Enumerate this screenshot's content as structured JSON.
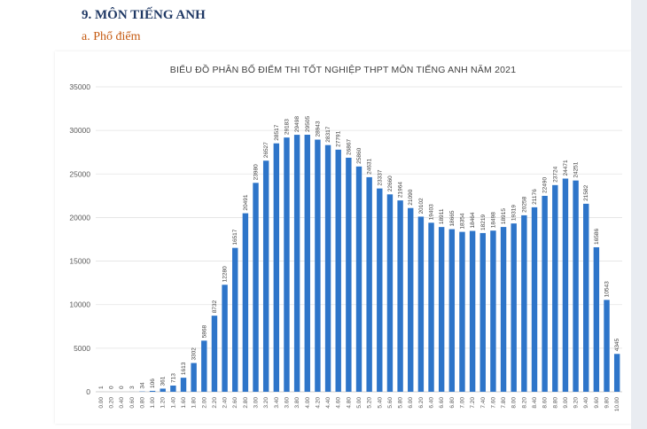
{
  "heading": "9.  MÔN TIẾNG ANH",
  "subheading": "a.  Phổ điểm",
  "chart_data": {
    "type": "bar",
    "title": "BIỂU ĐỒ PHÂN BỐ ĐIỂM THI TỐT NGHIỆP THPT MÔN TIẾNG ANH NĂM 2021",
    "xlabel": "",
    "ylabel": "",
    "ylim": [
      0,
      35000
    ],
    "yticks": [
      0,
      5000,
      10000,
      15000,
      20000,
      25000,
      30000,
      35000
    ],
    "grid": true,
    "legend": "none",
    "bar_color": "#2e75c9",
    "categories": [
      "0.00",
      "0.20",
      "0.40",
      "0.60",
      "0.80",
      "1.00",
      "1.20",
      "1.40",
      "1.60",
      "1.80",
      "2.00",
      "2.20",
      "2.40",
      "2.60",
      "2.80",
      "3.00",
      "3.20",
      "3.40",
      "3.60",
      "3.80",
      "4.00",
      "4.20",
      "4.40",
      "4.60",
      "4.80",
      "5.00",
      "5.20",
      "5.40",
      "5.60",
      "5.80",
      "6.00",
      "6.20",
      "6.40",
      "6.60",
      "6.80",
      "7.00",
      "7.20",
      "7.40",
      "7.60",
      "7.80",
      "8.00",
      "8.20",
      "8.40",
      "8.60",
      "8.80",
      "9.00",
      "9.20",
      "9.40",
      "9.60",
      "9.80",
      "10.00"
    ],
    "values": [
      1,
      0,
      0,
      3,
      34,
      106,
      361,
      713,
      1613,
      3302,
      5868,
      8732,
      12280,
      16517,
      20491,
      23980,
      26527,
      28517,
      29183,
      29498,
      29505,
      28943,
      28317,
      27791,
      26867,
      25860,
      24631,
      23337,
      22660,
      21964,
      21090,
      20102,
      19403,
      18911,
      18665,
      18354,
      18464,
      18219,
      18498,
      18915,
      19319,
      20258,
      21176,
      22490,
      23724,
      24471,
      24251,
      21582,
      16586,
      10543,
      4345
    ]
  }
}
